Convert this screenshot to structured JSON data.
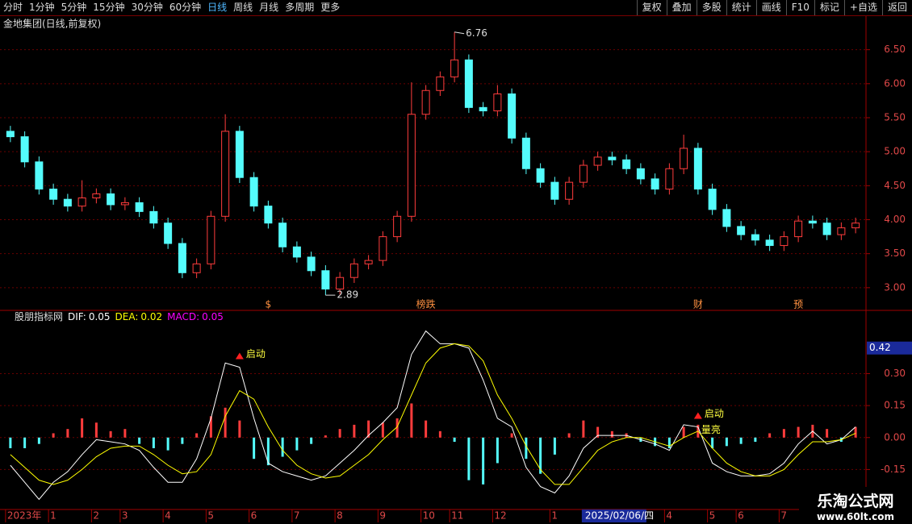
{
  "toolbar": {
    "left": [
      "分时",
      "1分钟",
      "5分钟",
      "15分钟",
      "30分钟",
      "60分钟",
      "日线",
      "周线",
      "月线",
      "多周期",
      "更多"
    ],
    "active": "日线",
    "right": [
      "复权",
      "叠加",
      "多股",
      "统计",
      "画线",
      "F10",
      "标记",
      "+自选",
      "返回"
    ]
  },
  "chart_data": [
    {
      "type": "candlestick",
      "title": "金地集团(日线,前复权)",
      "open": [
        5.3,
        5.22,
        4.85,
        4.45,
        4.3,
        4.2,
        4.32,
        4.38,
        4.22,
        4.25,
        4.12,
        3.95,
        3.65,
        3.22,
        3.35,
        4.05,
        5.3,
        4.62,
        4.2,
        3.95,
        3.6,
        3.45,
        3.25,
        2.98,
        3.15,
        3.35,
        3.4,
        3.75,
        4.05,
        5.55,
        5.9,
        6.1,
        6.35,
        5.65,
        5.6,
        5.85,
        5.2,
        4.75,
        4.55,
        4.3,
        4.55,
        4.8,
        4.92,
        4.88,
        4.75,
        4.6,
        4.45,
        4.75,
        5.05,
        4.45,
        4.15,
        3.9,
        3.78,
        3.7,
        3.62,
        3.75,
        3.98,
        3.95,
        3.78,
        3.88
      ],
      "high": [
        5.38,
        5.3,
        4.93,
        4.53,
        4.38,
        4.58,
        4.46,
        4.46,
        4.33,
        4.33,
        4.2,
        4.03,
        3.73,
        3.43,
        4.13,
        5.55,
        5.38,
        4.7,
        4.28,
        4.03,
        3.68,
        3.53,
        3.33,
        3.23,
        3.43,
        3.48,
        3.83,
        4.13,
        6.02,
        5.98,
        6.18,
        6.76,
        6.43,
        5.73,
        5.98,
        5.93,
        5.28,
        4.83,
        4.63,
        4.63,
        4.88,
        5.0,
        5.0,
        4.96,
        4.83,
        4.68,
        4.83,
        5.25,
        5.13,
        4.53,
        4.23,
        3.98,
        3.86,
        3.78,
        3.83,
        4.06,
        4.06,
        4.03,
        3.96,
        4.03
      ],
      "low": [
        5.14,
        4.77,
        4.37,
        4.22,
        4.12,
        4.12,
        4.24,
        4.14,
        4.14,
        4.04,
        3.87,
        3.57,
        3.14,
        3.14,
        3.27,
        3.97,
        4.54,
        4.12,
        3.87,
        3.52,
        3.37,
        3.17,
        2.89,
        2.9,
        3.07,
        3.27,
        3.32,
        3.67,
        3.97,
        5.47,
        5.82,
        6.02,
        5.57,
        5.52,
        5.52,
        5.12,
        4.67,
        4.47,
        4.22,
        4.22,
        4.47,
        4.72,
        4.8,
        4.67,
        4.52,
        4.37,
        4.37,
        4.67,
        4.37,
        4.07,
        3.82,
        3.7,
        3.62,
        3.54,
        3.54,
        3.67,
        3.87,
        3.7,
        3.7,
        3.8
      ],
      "close": [
        5.22,
        4.85,
        4.45,
        4.3,
        4.2,
        4.32,
        4.38,
        4.22,
        4.25,
        4.12,
        3.95,
        3.65,
        3.22,
        3.35,
        4.05,
        5.3,
        4.62,
        4.2,
        3.95,
        3.6,
        3.45,
        3.25,
        2.98,
        3.15,
        3.35,
        3.4,
        3.75,
        4.05,
        5.55,
        5.9,
        6.1,
        6.35,
        5.65,
        5.6,
        5.85,
        5.2,
        4.75,
        4.55,
        4.3,
        4.55,
        4.8,
        4.92,
        4.88,
        4.75,
        4.6,
        4.45,
        4.75,
        5.05,
        4.45,
        4.15,
        3.9,
        3.78,
        3.7,
        3.62,
        3.75,
        3.98,
        3.95,
        3.78,
        3.88,
        3.95
      ],
      "up_color": "#ff3c3c",
      "down_color": "#54fcfc",
      "ylim": [
        2.69,
        6.97
      ],
      "yticks": [
        {
          "value": 3,
          "label": "3.00"
        },
        {
          "value": 3.5,
          "label": "3.50"
        },
        {
          "value": 4,
          "label": "4.00"
        },
        {
          "value": 4.5,
          "label": "4.50"
        },
        {
          "value": 5,
          "label": "5.00"
        },
        {
          "value": 5.5,
          "label": "5.50"
        },
        {
          "value": 6,
          "label": "6.00"
        },
        {
          "value": 6.5,
          "label": "6.50"
        }
      ],
      "grid": true,
      "events": [
        null,
        null,
        null,
        null,
        null,
        null,
        null,
        null,
        null,
        null,
        null,
        null,
        null,
        null,
        null,
        null,
        null,
        null,
        "$",
        null,
        null,
        null,
        null,
        null,
        null,
        null,
        null,
        null,
        null,
        "榜跌",
        null,
        null,
        null,
        null,
        null,
        null,
        null,
        null,
        null,
        null,
        null,
        null,
        null,
        null,
        null,
        null,
        null,
        null,
        "财",
        null,
        null,
        null,
        null,
        null,
        null,
        "预",
        null,
        null,
        null,
        null
      ]
    },
    {
      "type": "macd",
      "title": "股朋指标网",
      "categories": [
        "2023年",
        null,
        null,
        "1",
        null,
        null,
        "2",
        null,
        "3",
        null,
        null,
        "4",
        null,
        null,
        "5",
        null,
        null,
        "6",
        null,
        null,
        "7",
        null,
        null,
        "8",
        null,
        null,
        "9",
        null,
        null,
        "10",
        null,
        "11",
        null,
        null,
        "12",
        null,
        null,
        null,
        "1",
        null,
        null,
        null,
        null,
        null,
        null,
        null,
        "4",
        null,
        null,
        "5",
        null,
        "6",
        null,
        null,
        "7",
        null,
        null,
        null,
        null,
        null
      ],
      "series": [
        {
          "name": "DIF:",
          "color": "#ffffff",
          "values": [
            -0.13,
            -0.21,
            -0.29,
            -0.21,
            -0.16,
            -0.08,
            -0.01,
            -0.02,
            -0.03,
            -0.06,
            -0.14,
            -0.21,
            -0.21,
            -0.1,
            0.09,
            0.35,
            0.33,
            0.09,
            -0.12,
            -0.16,
            -0.18,
            -0.2,
            -0.18,
            -0.12,
            -0.06,
            0.01,
            0.07,
            0.14,
            0.39,
            0.5,
            0.44,
            0.44,
            0.42,
            0.27,
            0.09,
            0.05,
            -0.14,
            -0.23,
            -0.26,
            -0.18,
            -0.05,
            0.01,
            0.01,
            0.01,
            -0.01,
            -0.03,
            -0.06,
            0.06,
            0.05,
            -0.12,
            -0.16,
            -0.18,
            -0.18,
            -0.17,
            -0.12,
            -0.03,
            0.03,
            -0.03,
            -0.01,
            0.05
          ]
        },
        {
          "name": "DEA:",
          "color": "#ffff00",
          "values": [
            -0.08,
            -0.14,
            -0.2,
            -0.22,
            -0.2,
            -0.15,
            -0.09,
            -0.05,
            -0.04,
            -0.04,
            -0.08,
            -0.13,
            -0.17,
            -0.16,
            -0.08,
            0.1,
            0.22,
            0.18,
            0.05,
            -0.06,
            -0.13,
            -0.17,
            -0.19,
            -0.18,
            -0.13,
            -0.08,
            -0.01,
            0.05,
            0.2,
            0.35,
            0.42,
            0.44,
            0.43,
            0.36,
            0.2,
            0.09,
            -0.04,
            -0.15,
            -0.22,
            -0.22,
            -0.14,
            -0.06,
            -0.02,
            0.0,
            0.0,
            -0.02,
            -0.04,
            0.0,
            0.03,
            -0.05,
            -0.12,
            -0.16,
            -0.18,
            -0.18,
            -0.15,
            -0.08,
            -0.02,
            -0.02,
            -0.01,
            0.02
          ]
        },
        {
          "name": "MACD:",
          "color": "#ff00ff",
          "up_color": "#ff3c3c",
          "down_color": "#54fcfc",
          "values": [
            -0.05,
            -0.05,
            -0.03,
            0.02,
            0.04,
            0.09,
            0.07,
            0.03,
            0.04,
            -0.03,
            -0.05,
            -0.06,
            -0.03,
            0.02,
            0.1,
            0.14,
            0.08,
            -0.1,
            -0.13,
            -0.09,
            -0.06,
            -0.03,
            0.01,
            0.04,
            0.06,
            0.08,
            0.07,
            0.09,
            0.16,
            0.08,
            0.03,
            -0.02,
            -0.2,
            -0.22,
            -0.12,
            0.02,
            -0.1,
            -0.17,
            -0.08,
            0.02,
            0.08,
            0.05,
            0.03,
            0.02,
            -0.02,
            -0.04,
            -0.05,
            0.05,
            0.06,
            -0.05,
            -0.04,
            -0.03,
            -0.02,
            0.02,
            0.04,
            0.05,
            0.06,
            0.04,
            -0.02,
            0.05
          ]
        }
      ],
      "ylim": [
        -0.33,
        0.54
      ],
      "yticks": [
        {
          "value": -0.15,
          "label": "-0.15"
        },
        {
          "value": 0,
          "label": "0.00"
        },
        {
          "value": 0.15,
          "label": "0.15"
        },
        {
          "value": 0.3,
          "label": "0.30"
        }
      ],
      "grid": true,
      "cursor": {
        "index": 40,
        "label": "2025/02/06/四",
        "value": 0.42
      },
      "signals": [
        null,
        null,
        null,
        null,
        null,
        null,
        null,
        null,
        null,
        null,
        null,
        null,
        null,
        null,
        null,
        null,
        "启动",
        null,
        null,
        null,
        null,
        null,
        null,
        null,
        null,
        null,
        null,
        null,
        null,
        null,
        null,
        null,
        null,
        null,
        null,
        null,
        null,
        null,
        null,
        null,
        null,
        null,
        null,
        null,
        null,
        null,
        null,
        null,
        "启动",
        null,
        null,
        null,
        null,
        null,
        null,
        null,
        null,
        null,
        null,
        null
      ],
      "volume_signals": [
        null,
        null,
        null,
        null,
        null,
        null,
        null,
        null,
        null,
        null,
        null,
        null,
        null,
        null,
        null,
        null,
        null,
        null,
        null,
        null,
        null,
        null,
        null,
        null,
        null,
        null,
        null,
        null,
        null,
        null,
        null,
        null,
        null,
        null,
        null,
        null,
        null,
        null,
        null,
        null,
        null,
        null,
        null,
        null,
        null,
        null,
        null,
        null,
        "量亮",
        null,
        null,
        null,
        null,
        null,
        null,
        null,
        null,
        null,
        null,
        null
      ]
    }
  ],
  "watermark": {
    "title": "乐淘公式网",
    "url": "www.60lt.com"
  }
}
